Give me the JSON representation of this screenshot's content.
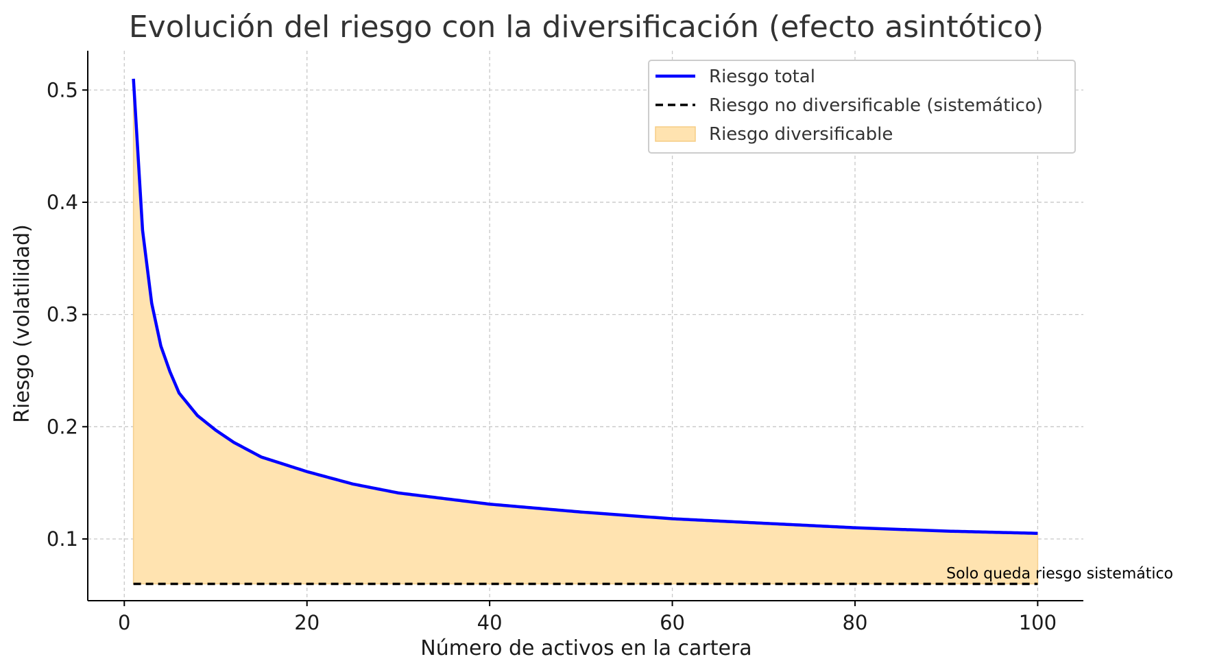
{
  "chart_data": {
    "type": "line",
    "title": "Evolución del riesgo con la diversificación (efecto asintótico)",
    "xlabel": "Número de activos en la cartera",
    "ylabel": "Riesgo (volatilidad)",
    "xlim": [
      -4,
      105
    ],
    "ylim": [
      0.045,
      0.535
    ],
    "xticks": [
      0,
      20,
      40,
      60,
      80,
      100
    ],
    "yticks": [
      0.1,
      0.2,
      0.3,
      0.4,
      0.5
    ],
    "xtick_labels": [
      "0",
      "20",
      "40",
      "60",
      "80",
      "100"
    ],
    "ytick_labels": [
      "0.1",
      "0.2",
      "0.3",
      "0.4",
      "0.5"
    ],
    "grid": true,
    "legend_position": "top-right",
    "series": [
      {
        "name": "Riesgo total",
        "style": "solid",
        "color": "#0000ff",
        "x": [
          1,
          2,
          3,
          4,
          5,
          6,
          8,
          10,
          12,
          15,
          20,
          25,
          30,
          40,
          50,
          60,
          70,
          80,
          90,
          100
        ],
        "y": [
          0.51,
          0.375,
          0.31,
          0.272,
          0.249,
          0.23,
          0.21,
          0.197,
          0.186,
          0.173,
          0.16,
          0.149,
          0.141,
          0.131,
          0.124,
          0.118,
          0.114,
          0.11,
          0.107,
          0.105
        ]
      },
      {
        "name": "Riesgo no diversificable (sistemático)",
        "style": "dashed",
        "color": "#000000",
        "x": [
          1,
          100
        ],
        "y": [
          0.06,
          0.06
        ]
      },
      {
        "name": "Riesgo diversificable",
        "style": "fill",
        "color": "#ffe3b0"
      }
    ],
    "annotations": [
      {
        "text": "Solo queda riesgo sistemático",
        "x": 90,
        "y": 0.06
      }
    ]
  }
}
